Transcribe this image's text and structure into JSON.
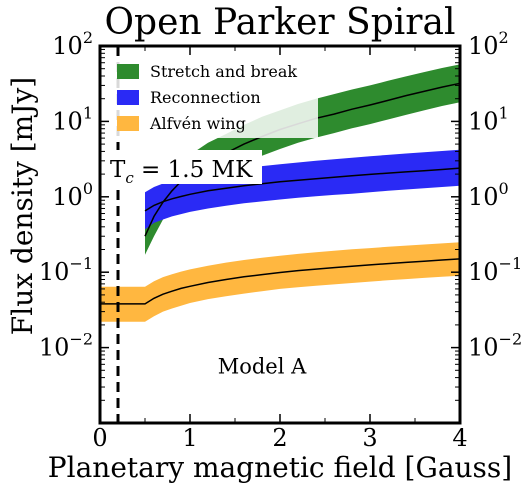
{
  "chart_data": {
    "type": "area",
    "title": "Open Parker Spiral",
    "xlabel": "Planetary magnetic field [Gauss]",
    "ylabel": "Flux density [mJy]",
    "xlim": [
      0,
      4
    ],
    "ylim": [
      0.001,
      100
    ],
    "yscale": "log",
    "x_ticks": [
      {
        "value": 0,
        "label": "0"
      },
      {
        "value": 1,
        "label": "1"
      },
      {
        "value": 2,
        "label": "2"
      },
      {
        "value": 3,
        "label": "3"
      },
      {
        "value": 4,
        "label": "4"
      }
    ],
    "y_ticks": [
      {
        "value": 100,
        "base": "10",
        "exp": "2"
      },
      {
        "value": 10,
        "base": "10",
        "exp": "1"
      },
      {
        "value": 1,
        "base": "10",
        "exp": "0"
      },
      {
        "value": 0.1,
        "base": "10",
        "exp": "−1"
      },
      {
        "value": 0.01,
        "base": "10",
        "exp": "−2"
      }
    ],
    "grid": false,
    "legend_position": "top-left",
    "series": [
      {
        "name": "Stretch and break",
        "color": "#2e8b2e",
        "x": [
          0.5,
          0.6,
          0.7,
          0.8,
          0.9,
          1.0,
          1.2,
          1.4,
          1.6,
          1.8,
          2.0,
          2.2,
          2.4,
          2.6,
          2.8,
          3.0,
          3.2,
          3.4,
          3.6,
          3.8,
          4.0
        ],
        "center": [
          0.3,
          0.55,
          0.85,
          1.2,
          1.6,
          2.0,
          2.9,
          3.8,
          5.0,
          6.3,
          7.8,
          9.3,
          11.0,
          12.5,
          14.5,
          16.5,
          19.0,
          22.0,
          25.0,
          28.5,
          32.0
        ],
        "lower": [
          0.17,
          0.3,
          0.5,
          0.7,
          0.9,
          1.1,
          1.6,
          2.1,
          2.8,
          3.5,
          4.3,
          5.2,
          6.1,
          7.0,
          8.1,
          9.2,
          10.6,
          12.2,
          14.0,
          16.0,
          18.0
        ],
        "upper": [
          0.6,
          1.0,
          1.5,
          2.1,
          2.8,
          3.6,
          5.2,
          6.8,
          9.0,
          11.5,
          14.0,
          17.0,
          20.0,
          23.0,
          26.5,
          30.0,
          34.5,
          39.5,
          45.0,
          51.0,
          57.0
        ]
      },
      {
        "name": "Reconnection",
        "color": "#2a2af5",
        "x": [
          0.5,
          0.6,
          0.7,
          0.8,
          0.9,
          1.0,
          1.2,
          1.4,
          1.6,
          1.8,
          2.0,
          2.2,
          2.4,
          2.6,
          2.8,
          3.0,
          3.2,
          3.4,
          3.6,
          3.8,
          4.0
        ],
        "center": [
          0.65,
          0.77,
          0.86,
          0.94,
          1.01,
          1.08,
          1.2,
          1.3,
          1.4,
          1.49,
          1.58,
          1.66,
          1.74,
          1.82,
          1.9,
          1.98,
          2.06,
          2.14,
          2.22,
          2.3,
          2.4
        ],
        "lower": [
          0.37,
          0.45,
          0.5,
          0.55,
          0.59,
          0.63,
          0.7,
          0.76,
          0.82,
          0.87,
          0.92,
          0.97,
          1.02,
          1.06,
          1.1,
          1.15,
          1.2,
          1.25,
          1.3,
          1.35,
          1.4
        ],
        "upper": [
          1.15,
          1.35,
          1.5,
          1.62,
          1.74,
          1.85,
          2.05,
          2.22,
          2.4,
          2.55,
          2.7,
          2.85,
          3.0,
          3.15,
          3.3,
          3.45,
          3.6,
          3.75,
          3.9,
          4.05,
          4.2
        ]
      },
      {
        "name": "Alfvén wing",
        "color": "#ffb740",
        "x": [
          0.0,
          0.25,
          0.5,
          0.6,
          0.7,
          0.8,
          0.9,
          1.0,
          1.2,
          1.4,
          1.6,
          1.8,
          2.0,
          2.2,
          2.4,
          2.6,
          2.8,
          3.0,
          3.2,
          3.4,
          3.6,
          3.8,
          4.0
        ],
        "center": [
          0.038,
          0.038,
          0.038,
          0.045,
          0.051,
          0.056,
          0.061,
          0.065,
          0.073,
          0.08,
          0.087,
          0.093,
          0.099,
          0.105,
          0.11,
          0.115,
          0.12,
          0.125,
          0.13,
          0.135,
          0.14,
          0.145,
          0.15
        ],
        "lower": [
          0.022,
          0.022,
          0.022,
          0.026,
          0.03,
          0.033,
          0.036,
          0.039,
          0.044,
          0.048,
          0.052,
          0.056,
          0.06,
          0.063,
          0.066,
          0.069,
          0.072,
          0.075,
          0.078,
          0.081,
          0.084,
          0.087,
          0.09
        ],
        "upper": [
          0.064,
          0.064,
          0.064,
          0.076,
          0.086,
          0.094,
          0.102,
          0.109,
          0.122,
          0.134,
          0.145,
          0.155,
          0.165,
          0.175,
          0.184,
          0.193,
          0.201,
          0.209,
          0.217,
          0.225,
          0.233,
          0.241,
          0.25
        ]
      }
    ],
    "annotations": {
      "threshold": {
        "x": 0.2,
        "label_prefix": "T",
        "label_sub": "c",
        "label_value": " = 1.5 MK",
        "style": "dashed"
      },
      "model_label": {
        "text": "Model A",
        "x": 1.8,
        "y": 0.0045
      }
    }
  }
}
